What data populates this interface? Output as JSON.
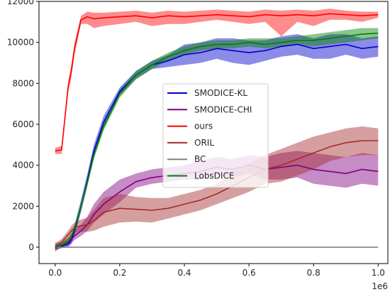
{
  "chart_data": {
    "type": "line",
    "title": "",
    "xlabel": "",
    "ylabel": "",
    "x_scale_label": "1e6",
    "xlim": [
      -0.05,
      1.03
    ],
    "ylim": [
      -800,
      12000
    ],
    "x_ticks": [
      0.0,
      0.2,
      0.4,
      0.6,
      0.8,
      1.0
    ],
    "x_tick_labels": [
      "0.0",
      "0.2",
      "0.4",
      "0.6",
      "0.8",
      "1.0"
    ],
    "y_ticks": [
      0,
      2000,
      4000,
      6000,
      8000,
      10000,
      12000
    ],
    "y_tick_labels": [
      "0",
      "2000",
      "4000",
      "6000",
      "8000",
      "10000",
      "12000"
    ],
    "grid": false,
    "legend_position": "center",
    "x": [
      0.0,
      0.02,
      0.04,
      0.05,
      0.06,
      0.08,
      0.1,
      0.12,
      0.15,
      0.2,
      0.25,
      0.3,
      0.35,
      0.4,
      0.45,
      0.5,
      0.55,
      0.6,
      0.65,
      0.7,
      0.75,
      0.8,
      0.85,
      0.9,
      0.95,
      1.0
    ],
    "series": [
      {
        "name": "SMODICE-KL",
        "color": "#0000cc",
        "values": [
          0,
          50,
          150,
          350,
          800,
          2000,
          3300,
          4700,
          6100,
          7600,
          8400,
          8900,
          9100,
          9400,
          9500,
          9700,
          9600,
          9500,
          9600,
          9800,
          9900,
          9700,
          9800,
          9900,
          9700,
          9800
        ],
        "lower": [
          -100,
          -50,
          0,
          150,
          550,
          1700,
          3000,
          4400,
          5800,
          7400,
          8200,
          8700,
          8800,
          8900,
          9000,
          9200,
          9000,
          8900,
          9100,
          9300,
          9400,
          9200,
          9200,
          9400,
          9200,
          9300
        ],
        "upper": [
          100,
          150,
          300,
          550,
          1050,
          2300,
          3600,
          5000,
          6400,
          7800,
          8600,
          9100,
          9400,
          9900,
          10000,
          10200,
          10200,
          10100,
          10100,
          10300,
          10400,
          10200,
          10400,
          10400,
          10200,
          10300
        ]
      },
      {
        "name": "SMODICE-CHI",
        "color": "#800080",
        "values": [
          0,
          100,
          250,
          400,
          550,
          800,
          1100,
          1600,
          2100,
          2700,
          3200,
          3400,
          3500,
          3600,
          3700,
          3900,
          3800,
          4000,
          3800,
          3900,
          4000,
          3800,
          3700,
          3600,
          3800,
          3700
        ],
        "lower": [
          -200,
          0,
          100,
          200,
          350,
          550,
          800,
          1200,
          1600,
          2200,
          2900,
          3100,
          3200,
          3300,
          3300,
          3500,
          3400,
          3600,
          3300,
          3300,
          3400,
          3100,
          3000,
          2900,
          3100,
          3000
        ],
        "upper": [
          200,
          250,
          450,
          600,
          800,
          1100,
          1500,
          2100,
          2700,
          3300,
          3600,
          3800,
          3900,
          4000,
          4200,
          4400,
          4300,
          4500,
          4400,
          4600,
          4700,
          4600,
          4500,
          4400,
          4600,
          4500
        ]
      },
      {
        "name": "ours",
        "color": "#ff0000",
        "values": [
          4700,
          4750,
          7800,
          8600,
          9700,
          11100,
          11250,
          11150,
          11200,
          11250,
          11300,
          11200,
          11300,
          11250,
          11300,
          11350,
          11300,
          11250,
          11350,
          11300,
          11350,
          11300,
          11400,
          11350,
          11300,
          11350
        ],
        "lower": [
          4550,
          4550,
          7500,
          8300,
          9400,
          10900,
          10900,
          10700,
          10800,
          10900,
          11000,
          10800,
          10900,
          10900,
          11000,
          11100,
          11000,
          10900,
          11000,
          10300,
          11000,
          10800,
          11100,
          11100,
          11000,
          11200
        ],
        "upper": [
          4850,
          4950,
          8100,
          8900,
          10000,
          11300,
          11500,
          11450,
          11450,
          11500,
          11550,
          11450,
          11550,
          11500,
          11550,
          11600,
          11550,
          11500,
          11600,
          11550,
          11600,
          11550,
          11650,
          11550,
          11500,
          11500
        ]
      },
      {
        "name": "ORIL",
        "color": "#a52a2a",
        "values": [
          0,
          250,
          600,
          800,
          950,
          1050,
          1100,
          1300,
          1700,
          1900,
          1850,
          1800,
          1900,
          2100,
          2300,
          2600,
          3000,
          3400,
          3800,
          4000,
          4300,
          4600,
          4900,
          5100,
          5200,
          5200
        ],
        "lower": [
          -200,
          100,
          400,
          550,
          700,
          750,
          750,
          800,
          1000,
          1200,
          1250,
          1200,
          1400,
          1600,
          1800,
          2100,
          2400,
          2700,
          3100,
          3200,
          3500,
          3800,
          4200,
          4400,
          4500,
          4500
        ],
        "upper": [
          200,
          400,
          800,
          1050,
          1200,
          1350,
          1450,
          1800,
          2400,
          2600,
          2450,
          2400,
          2400,
          2600,
          2800,
          3100,
          3600,
          4100,
          4500,
          4800,
          5100,
          5400,
          5600,
          5800,
          5900,
          5800
        ]
      },
      {
        "name": "BC",
        "color": "#808080",
        "values": [
          0,
          0,
          0,
          0,
          0,
          0,
          0,
          0,
          0,
          0,
          0,
          0,
          0,
          0,
          0,
          0,
          0,
          0,
          0,
          0,
          0,
          0,
          0,
          0,
          0,
          0
        ],
        "lower": [
          0,
          0,
          0,
          0,
          0,
          0,
          0,
          0,
          0,
          0,
          0,
          0,
          0,
          0,
          0,
          0,
          0,
          0,
          0,
          0,
          0,
          0,
          0,
          0,
          0,
          0
        ],
        "upper": [
          0,
          0,
          0,
          0,
          0,
          0,
          0,
          0,
          0,
          0,
          0,
          0,
          0,
          0,
          0,
          0,
          0,
          0,
          0,
          0,
          0,
          0,
          0,
          0,
          0,
          0
        ]
      },
      {
        "name": "LobsDICE",
        "color": "#008000",
        "values": [
          0,
          100,
          300,
          500,
          900,
          2000,
          3200,
          4500,
          5900,
          7500,
          8400,
          8900,
          9300,
          9600,
          9800,
          9900,
          9900,
          10000,
          9900,
          10000,
          10100,
          10100,
          10200,
          10300,
          10400,
          10450
        ],
        "lower": [
          -100,
          0,
          150,
          300,
          700,
          1800,
          3000,
          4300,
          5700,
          7300,
          8200,
          8700,
          9100,
          9400,
          9600,
          9700,
          9700,
          9800,
          9700,
          9800,
          9900,
          9800,
          9900,
          10000,
          10100,
          10200
        ],
        "upper": [
          100,
          200,
          450,
          700,
          1100,
          2200,
          3400,
          4700,
          6100,
          7700,
          8600,
          9100,
          9500,
          9800,
          10000,
          10100,
          10100,
          10200,
          10200,
          10200,
          10300,
          10400,
          10500,
          10600,
          10700,
          10700
        ]
      }
    ]
  }
}
